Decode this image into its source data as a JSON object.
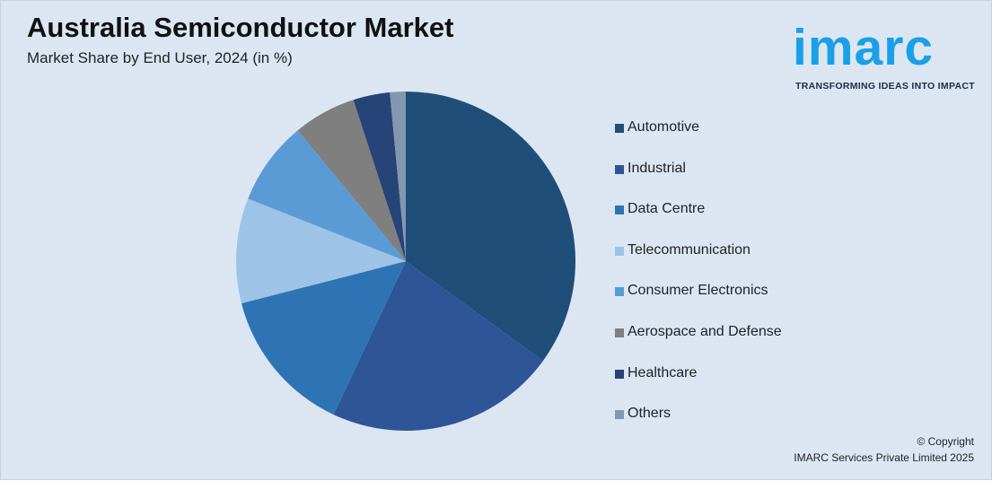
{
  "header": {
    "title": "Australia Semiconductor Market",
    "subtitle": "Market Share by End User, 2024 (in %)"
  },
  "logo": {
    "word": "imarc",
    "tagline": "TRANSFORMING IDEAS INTO IMPACT",
    "color": "#1aa0e6"
  },
  "copyright": {
    "line1": "© Copyright",
    "line2": "IMARC Services Private Limited 2025"
  },
  "chart_data": {
    "type": "pie",
    "title": "Australia Semiconductor Market",
    "subtitle": "Market Share by End User, 2024 (in %)",
    "legend_position": "right",
    "start_angle": "12 o'clock",
    "direction": "clockwise",
    "labels": [
      "Automotive",
      "Industrial",
      "Data Centre",
      "Telecommunication",
      "Consumer Electronics",
      "Aerospace and Defense",
      "Healthcare",
      "Others"
    ],
    "values": [
      35,
      22,
      14,
      10,
      8,
      6,
      3.5,
      1.5
    ],
    "colors": [
      "#1f4e79",
      "#2e5597",
      "#2e74b5",
      "#9dc3e6",
      "#5b9bd5",
      "#7f7f7f",
      "#264478",
      "#8497b0"
    ]
  }
}
